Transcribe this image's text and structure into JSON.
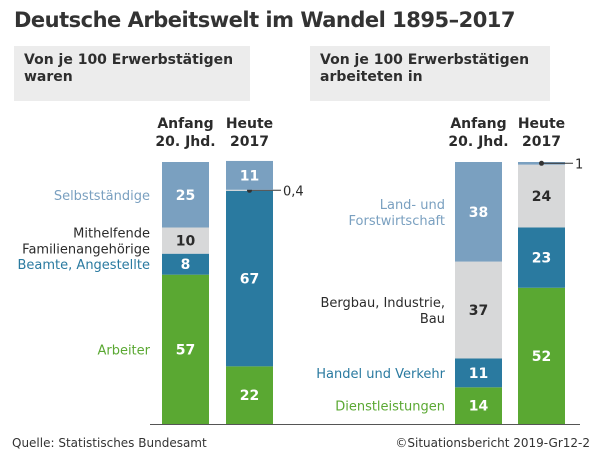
{
  "header": {
    "title": "Deutsche Arbeitswelt im Wandel 1895–2017"
  },
  "footer": {
    "source": "Quelle: Statistisches Bundesamt",
    "credit": "©Situationsbericht 2019-Gr12-2"
  },
  "colors": {
    "light_blue": "#7aa0c0",
    "grey": "#d7d8d9",
    "dark_blue": "#2a7aa0",
    "green": "#5aa832",
    "text_dark": "#2b2b2b"
  },
  "chart_data": [
    {
      "type": "bar",
      "stacked": true,
      "title": "Von je 100 Erwerbstätigen waren",
      "categories": [
        "Anfang 20. Jhd.",
        "Heute 2017"
      ],
      "category_lines": [
        [
          "Anfang",
          "20. Jhd."
        ],
        [
          "Heute",
          "2017"
        ]
      ],
      "ylim": [
        0,
        100
      ],
      "grid": false,
      "series": [
        {
          "name": "Arbeiter",
          "label_lines": [
            "Arbeiter"
          ],
          "color": "#5aa832",
          "label_color": "#5aa832",
          "values": [
            57,
            22
          ]
        },
        {
          "name": "Beamte, Angestellte",
          "label_lines": [
            "Beamte, Angestellte"
          ],
          "color": "#2a7aa0",
          "label_color": "#2a7aa0",
          "values": [
            8,
            67
          ]
        },
        {
          "name": "Mithelfende Familienangehörige",
          "label_lines": [
            "Mithelfende",
            "Familienangehörige"
          ],
          "color": "#d7d8d9",
          "label_color": "#2b2b2b",
          "values": [
            10,
            0.4
          ]
        },
        {
          "name": "Selbstständige",
          "label_lines": [
            "Selbstständige"
          ],
          "color": "#7aa0c0",
          "label_color": "#7aa0c0",
          "values": [
            25,
            11
          ]
        }
      ],
      "annotations": [
        {
          "text": "0,4",
          "category": "Heute 2017",
          "series": "Mithelfende Familienangehörige"
        }
      ]
    },
    {
      "type": "bar",
      "stacked": true,
      "title": "Von je 100 Erwerbstätigen arbeiteten in",
      "categories": [
        "Anfang 20. Jhd.",
        "Heute 2017"
      ],
      "category_lines": [
        [
          "Anfang",
          "20. Jhd."
        ],
        [
          "Heute",
          "2017"
        ]
      ],
      "ylim": [
        0,
        100
      ],
      "grid": false,
      "series": [
        {
          "name": "Dienstleistungen",
          "label_lines": [
            "Dienstleistungen"
          ],
          "color": "#5aa832",
          "label_color": "#5aa832",
          "values": [
            14,
            52
          ]
        },
        {
          "name": "Handel und Verkehr",
          "label_lines": [
            "Handel und Verkehr"
          ],
          "color": "#2a7aa0",
          "label_color": "#2a7aa0",
          "values": [
            11,
            23
          ]
        },
        {
          "name": "Bergbau, Industrie, Bau",
          "label_lines": [
            "Bergbau, Industrie,",
            "Bau"
          ],
          "color": "#d7d8d9",
          "label_color": "#2b2b2b",
          "values": [
            37,
            24
          ]
        },
        {
          "name": "Land- und Forstwirtschaft",
          "label_lines": [
            "Land- und",
            "Forstwirtschaft"
          ],
          "color": "#7aa0c0",
          "label_color": "#7aa0c0",
          "values": [
            38,
            1
          ]
        }
      ],
      "annotations": [
        {
          "text": "1",
          "category": "Heute 2017",
          "series": "Land- und Forstwirtschaft"
        }
      ]
    }
  ]
}
